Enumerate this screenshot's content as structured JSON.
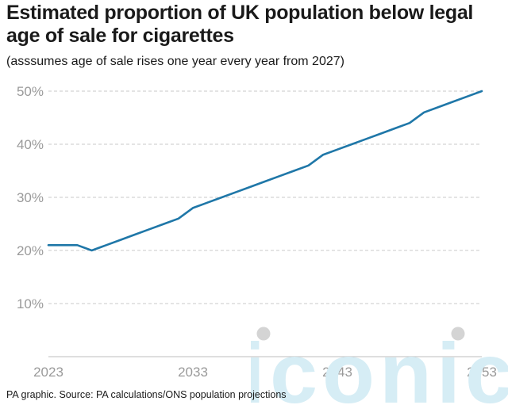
{
  "title": "Estimated proportion of UK population below legal age of sale for cigarettes",
  "subtitle": "(asssumes age of sale rises one year every year from 2027)",
  "source": "PA graphic. Source: PA calculations/ONS population projections",
  "watermark": "iconic",
  "colors": {
    "line": "#1f77a8",
    "grid": "#c8c8c8",
    "tick_text": "#9a9a9a",
    "watermark": "#d6edf5",
    "watermark_dot": "#d4d4d4"
  },
  "chart_data": {
    "type": "line",
    "x": [
      2023,
      2024,
      2025,
      2026,
      2027,
      2028,
      2029,
      2030,
      2031,
      2032,
      2033,
      2034,
      2035,
      2036,
      2037,
      2038,
      2039,
      2040,
      2041,
      2042,
      2043,
      2044,
      2045,
      2046,
      2047,
      2048,
      2049,
      2050,
      2051,
      2052,
      2053
    ],
    "values": [
      21,
      21,
      21,
      20,
      21,
      22,
      23,
      24,
      25,
      26,
      28,
      29,
      30,
      31,
      32,
      33,
      34,
      35,
      36,
      38,
      39,
      40,
      41,
      42,
      43,
      44,
      46,
      47,
      48,
      49,
      50
    ],
    "xticks": [
      2023,
      2033,
      2043,
      2053
    ],
    "xtick_labels": [
      "2023",
      "2033",
      "2043",
      "2053"
    ],
    "yticks": [
      10,
      20,
      30,
      40,
      50
    ],
    "ytick_labels": [
      "10%",
      "20%",
      "30%",
      "40%",
      "50%"
    ],
    "xlim": [
      2023,
      2053
    ],
    "ylim": [
      0,
      50
    ],
    "grid": "horizontal dashed",
    "xlabel": "",
    "ylabel": ""
  }
}
